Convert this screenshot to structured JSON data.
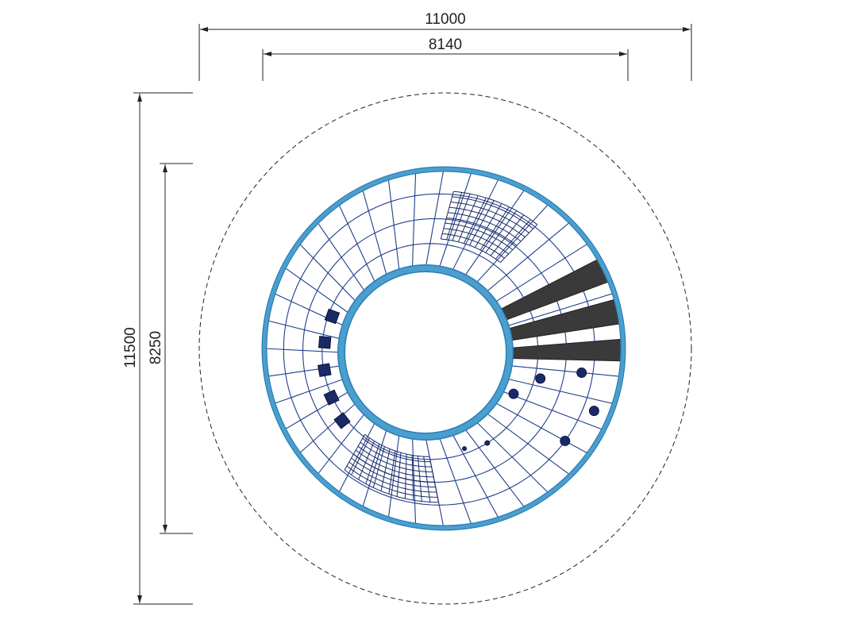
{
  "dimensions": {
    "overall_width": "11000",
    "inner_width": "8140",
    "overall_height": "11500",
    "inner_height": "8250"
  },
  "colors": {
    "frame": "#4a9fd0",
    "frame_edge": "#2d7fb0",
    "net": "#1f3f8c",
    "dark_net": "#1a2a66",
    "panel": "#3a3a3a",
    "dimension": "#222222",
    "safety_zone": "#222222"
  },
  "icons": {
    "safety_zone": "dashed-circle-icon",
    "frame": "ring-frame-icon"
  }
}
